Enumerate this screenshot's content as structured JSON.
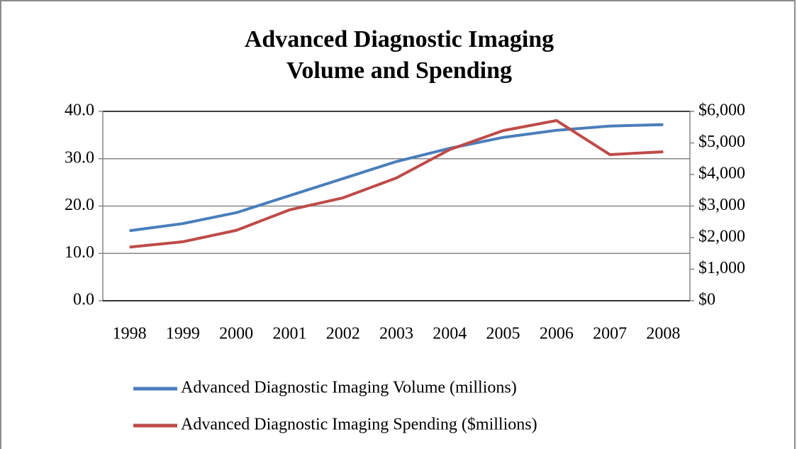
{
  "chart_data": {
    "type": "line",
    "title": [
      "Advanced Diagnostic Imaging",
      "Volume and Spending"
    ],
    "categories": [
      "1998",
      "1999",
      "2000",
      "2001",
      "2002",
      "2003",
      "2004",
      "2005",
      "2006",
      "2007",
      "2008"
    ],
    "series": [
      {
        "name": "Advanced Diagnostic Imaging Volume (millions)",
        "color": "#4a7ebb",
        "values": [
          14.8,
          16.3,
          18.6,
          22.2,
          25.8,
          29.4,
          32.2,
          34.5,
          36.0,
          36.9,
          37.2
        ]
      },
      {
        "name": "Advanced Diagnostic Imaging Spending ($millions)",
        "color": "#be4b48",
        "axis": "y2",
        "values": [
          1700,
          1870,
          2230,
          2880,
          3260,
          3890,
          4790,
          5390,
          5710,
          4630,
          4720
        ]
      }
    ],
    "ylim": [
      0,
      40
    ],
    "yticks": [
      {
        "value": 0,
        "label": "0.0"
      },
      {
        "value": 10,
        "label": "10.0"
      },
      {
        "value": 20,
        "label": "20.0"
      },
      {
        "value": 30,
        "label": "30.0"
      },
      {
        "value": 40,
        "label": "40.0"
      }
    ],
    "y2lim": [
      0,
      6000
    ],
    "y2ticks": [
      {
        "value": 0,
        "label": "$0"
      },
      {
        "value": 1000,
        "label": "$1,000"
      },
      {
        "value": 2000,
        "label": "$2,000"
      },
      {
        "value": 3000,
        "label": "$3,000"
      },
      {
        "value": 4000,
        "label": "$4,000"
      },
      {
        "value": 5000,
        "label": "$5,000"
      },
      {
        "value": 6000,
        "label": "$6,000"
      }
    ],
    "grid": true,
    "legend": "bottom"
  }
}
